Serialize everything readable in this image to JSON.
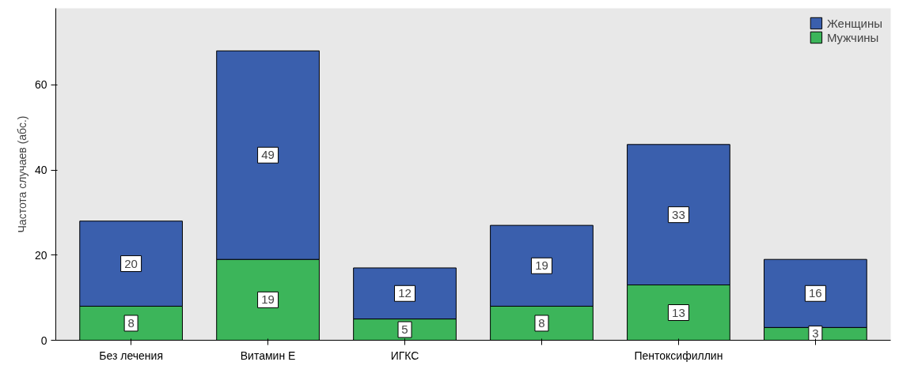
{
  "chart_data": {
    "type": "bar",
    "stacked": true,
    "ylabel": "Частота случаев (абс.)",
    "categories": [
      "Без лечения",
      "Витамин Е",
      "ИГКС",
      null,
      "Пентоксифиллин",
      null
    ],
    "series": [
      {
        "name": "Мужчины",
        "color": "#3cb55a",
        "values": [
          8,
          19,
          5,
          8,
          13,
          3
        ]
      },
      {
        "name": "Женщины",
        "color": "#3a5fad",
        "values": [
          20,
          49,
          12,
          19,
          33,
          16
        ]
      }
    ],
    "ylim": [
      0,
      78
    ],
    "yticks": [
      0,
      20,
      40,
      60
    ],
    "legend": "top right",
    "data_labels": true
  }
}
